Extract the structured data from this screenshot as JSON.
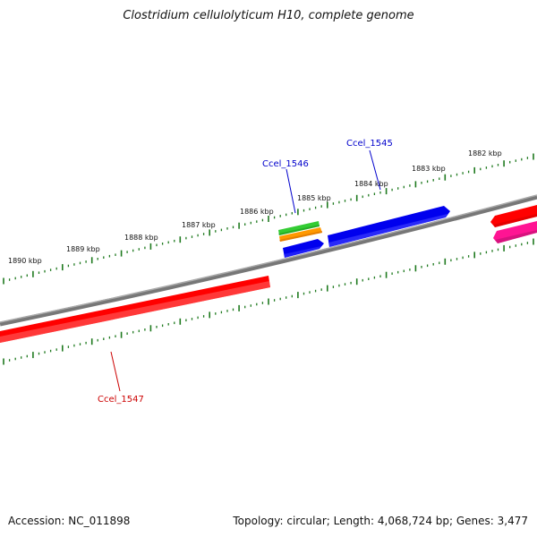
{
  "title": "Clostridium cellulolyticum H10, complete genome",
  "footer": {
    "accession": "Accession: NC_011898",
    "summary": "Topology: circular; Length: 4,068,724 bp; Genes: 3,477"
  },
  "scale_labels": [
    "1882 kbp",
    "1883 kbp",
    "1884 kbp",
    "1885 kbp",
    "1886 kbp",
    "1887 kbp",
    "1888 kbp",
    "1889 kbp",
    "1890 kbp"
  ],
  "gene_labels": {
    "ccel_1545": "Ccel_1545",
    "ccel_1546": "Ccel_1546",
    "ccel_1547": "Ccel_1547"
  },
  "colors": {
    "backbone": "#888888",
    "ticks": "#1f7a1f",
    "red_gene": "#ff0000",
    "blue_gene": "#0000ee",
    "green_gene": "#33cc33",
    "orange_gene": "#ff9900",
    "pink_gene": "#ff1493",
    "label_blue": "#0000cc",
    "label_red": "#cc0000"
  }
}
